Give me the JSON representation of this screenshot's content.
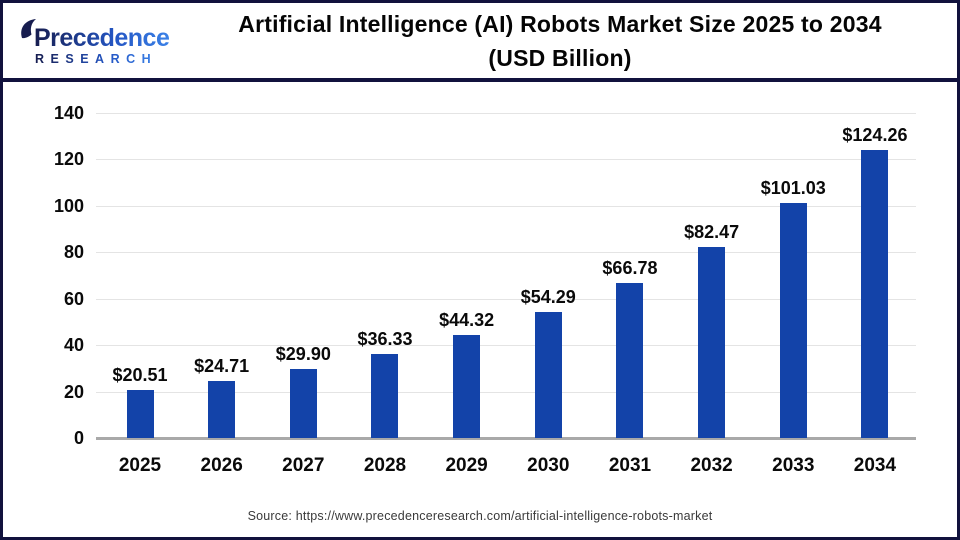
{
  "header": {
    "logo": {
      "name": "Precedence",
      "subtitle": "RESEARCH",
      "navy": "#171d4f",
      "blue": "#2f6fe2"
    },
    "title_line1": "Artificial Intelligence (AI) Robots Market Size 2025 to 2034",
    "title_line2": "(USD Billion)"
  },
  "chart_data": {
    "type": "bar",
    "title": "Artificial Intelligence (AI) Robots Market Size 2025 to 2034 (USD Billion)",
    "xlabel": "",
    "ylabel": "",
    "categories": [
      "2025",
      "2026",
      "2027",
      "2028",
      "2029",
      "2030",
      "2031",
      "2032",
      "2033",
      "2034"
    ],
    "values": [
      20.51,
      24.71,
      29.9,
      36.33,
      44.32,
      54.29,
      66.78,
      82.47,
      101.03,
      124.26
    ],
    "value_labels": [
      "$20.51",
      "$24.71",
      "$29.90",
      "$36.33",
      "$44.32",
      "$54.29",
      "$66.78",
      "$82.47",
      "$101.03",
      "$124.26"
    ],
    "y_ticks": [
      0,
      20,
      40,
      60,
      80,
      100,
      120,
      140
    ],
    "ylim": [
      0,
      140
    ],
    "grid": true,
    "legend": false,
    "bar_color": "#1343a9",
    "gridline_color": "#e4e4e4",
    "axis_line_color": "#a9a9a9"
  },
  "footer": {
    "source": "Source: https://www.precedenceresearch.com/artificial-intelligence-robots-market"
  }
}
